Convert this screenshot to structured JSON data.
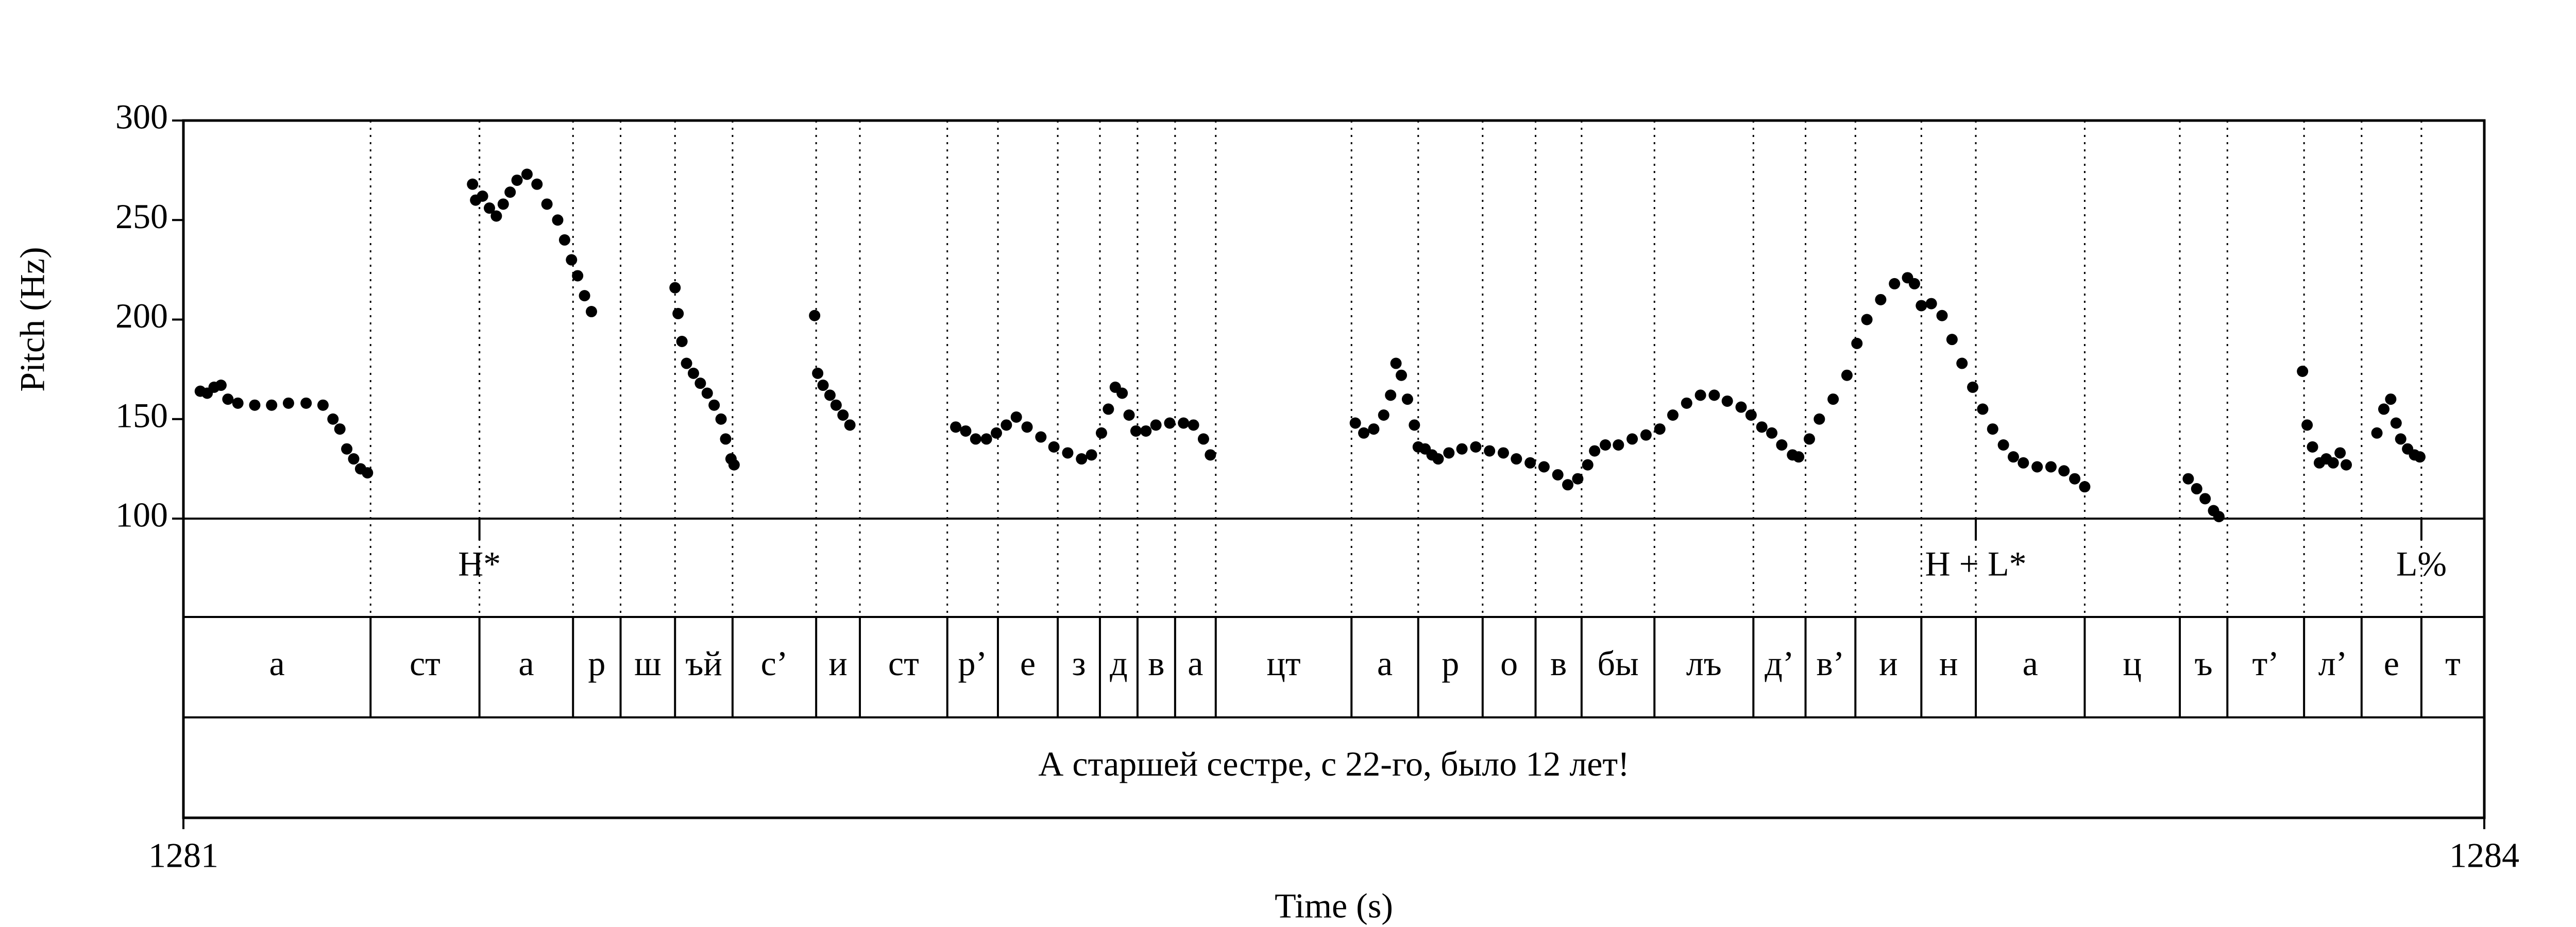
{
  "chart_data": {
    "type": "scatter",
    "xlabel": "Time (s)",
    "ylabel": "Pitch (Hz)",
    "xlim": [
      1281,
      1284
    ],
    "xticks": [
      1281,
      1284
    ],
    "ylim": [
      100,
      300
    ],
    "yticks": [
      100,
      150,
      200,
      250,
      300
    ],
    "color": "#000000",
    "x": [
      1281.022,
      1281.031,
      1281.04,
      1281.049,
      1281.058,
      1281.071,
      1281.093,
      1281.115,
      1281.137,
      1281.16,
      1281.182,
      1281.195,
      1281.204,
      1281.213,
      1281.222,
      1281.231,
      1281.24,
      1281.377,
      1281.381,
      1281.39,
      1281.399,
      1281.408,
      1281.417,
      1281.426,
      1281.435,
      1281.448,
      1281.461,
      1281.474,
      1281.488,
      1281.497,
      1281.506,
      1281.514,
      1281.523,
      1281.532,
      1281.641,
      1281.645,
      1281.65,
      1281.656,
      1281.665,
      1281.674,
      1281.683,
      1281.692,
      1281.701,
      1281.707,
      1281.714,
      1281.718,
      1281.823,
      1281.827,
      1281.834,
      1281.843,
      1281.851,
      1281.86,
      1281.869,
      1282.007,
      1282.02,
      1282.033,
      1282.047,
      1282.06,
      1282.073,
      1282.086,
      1282.1,
      1282.118,
      1282.135,
      1282.153,
      1282.171,
      1282.184,
      1282.197,
      1282.206,
      1282.215,
      1282.224,
      1282.233,
      1282.242,
      1282.255,
      1282.268,
      1282.286,
      1282.304,
      1282.317,
      1282.33,
      1282.339,
      1282.528,
      1282.539,
      1282.552,
      1282.565,
      1282.574,
      1282.581,
      1282.588,
      1282.596,
      1282.605,
      1282.61,
      1282.619,
      1282.628,
      1282.636,
      1282.65,
      1282.667,
      1282.685,
      1282.703,
      1282.721,
      1282.738,
      1282.756,
      1282.774,
      1282.792,
      1282.805,
      1282.818,
      1282.831,
      1282.84,
      1282.854,
      1282.871,
      1282.889,
      1282.907,
      1282.925,
      1282.942,
      1282.96,
      1282.978,
      1282.996,
      1283.013,
      1283.031,
      1283.044,
      1283.058,
      1283.071,
      1283.084,
      1283.098,
      1283.106,
      1283.12,
      1283.133,
      1283.151,
      1283.169,
      1283.182,
      1283.195,
      1283.213,
      1283.231,
      1283.248,
      1283.257,
      1283.266,
      1283.279,
      1283.293,
      1283.306,
      1283.319,
      1283.333,
      1283.346,
      1283.359,
      1283.373,
      1283.386,
      1283.399,
      1283.417,
      1283.435,
      1283.452,
      1283.466,
      1283.479,
      1283.614,
      1283.625,
      1283.636,
      1283.647,
      1283.654,
      1283.763,
      1283.769,
      1283.776,
      1283.785,
      1283.794,
      1283.803,
      1283.812,
      1283.82,
      1283.86,
      1283.869,
      1283.878,
      1283.885,
      1283.891,
      1283.9,
      1283.909,
      1283.916
    ],
    "values": [
      164,
      163,
      166,
      167,
      160,
      158,
      157,
      157,
      158,
      158,
      157,
      150,
      145,
      135,
      130,
      125,
      123,
      268,
      260,
      262,
      256,
      252,
      258,
      264,
      270,
      273,
      268,
      258,
      250,
      240,
      230,
      222,
      212,
      204,
      216,
      203,
      189,
      178,
      173,
      168,
      163,
      157,
      150,
      140,
      130,
      127,
      202,
      173,
      167,
      162,
      157,
      152,
      147,
      146,
      144,
      140,
      140,
      143,
      147,
      151,
      146,
      141,
      136,
      133,
      130,
      132,
      143,
      155,
      166,
      163,
      152,
      144,
      144,
      147,
      148,
      148,
      147,
      140,
      132,
      148,
      143,
      145,
      152,
      162,
      178,
      172,
      160,
      147,
      136,
      135,
      132,
      130,
      133,
      135,
      136,
      134,
      133,
      130,
      128,
      126,
      122,
      117,
      120,
      127,
      134,
      137,
      137,
      140,
      142,
      145,
      152,
      158,
      162,
      162,
      159,
      156,
      152,
      146,
      143,
      137,
      132,
      131,
      140,
      150,
      160,
      172,
      188,
      200,
      210,
      218,
      221,
      218,
      207,
      208,
      202,
      190,
      178,
      166,
      155,
      145,
      137,
      131,
      128,
      126,
      126,
      124,
      120,
      116,
      120,
      115,
      110,
      104,
      101,
      174,
      147,
      136,
      128,
      130,
      128,
      133,
      127,
      143,
      155,
      160,
      148,
      140,
      135,
      132,
      131
    ],
    "tone_tier": {
      "times": [
        1281.386,
        1283.337,
        1283.918
      ],
      "labels": [
        "H*",
        "H + L*",
        "L%"
      ]
    },
    "segment_tier": {
      "boundaries": [
        1281.244,
        1281.386,
        1281.508,
        1281.57,
        1281.641,
        1281.716,
        1281.825,
        1281.882,
        1281.996,
        1282.062,
        1282.14,
        1282.195,
        1282.244,
        1282.293,
        1282.346,
        1282.523,
        1282.61,
        1282.694,
        1282.763,
        1282.823,
        1282.918,
        1283.047,
        1283.115,
        1283.18,
        1283.266,
        1283.337,
        1283.479,
        1283.603,
        1283.665,
        1283.765,
        1283.84,
        1283.918
      ],
      "labels": [
        "а",
        "ст",
        "а",
        "р",
        "ш",
        "ъй",
        "с’",
        "и",
        "ст",
        "р’",
        "е",
        "з",
        "д",
        "в",
        "а",
        "цт",
        "а",
        "р",
        "о",
        "в",
        "бы",
        "лъ",
        "д’",
        "в’",
        "и",
        "н",
        "а",
        "ц",
        "ъ",
        "т’",
        "л’",
        "е",
        "т"
      ]
    },
    "sentence_tier": {
      "labels": [
        "А старшей сестре, с 22-го, было 12 лет!"
      ]
    }
  }
}
